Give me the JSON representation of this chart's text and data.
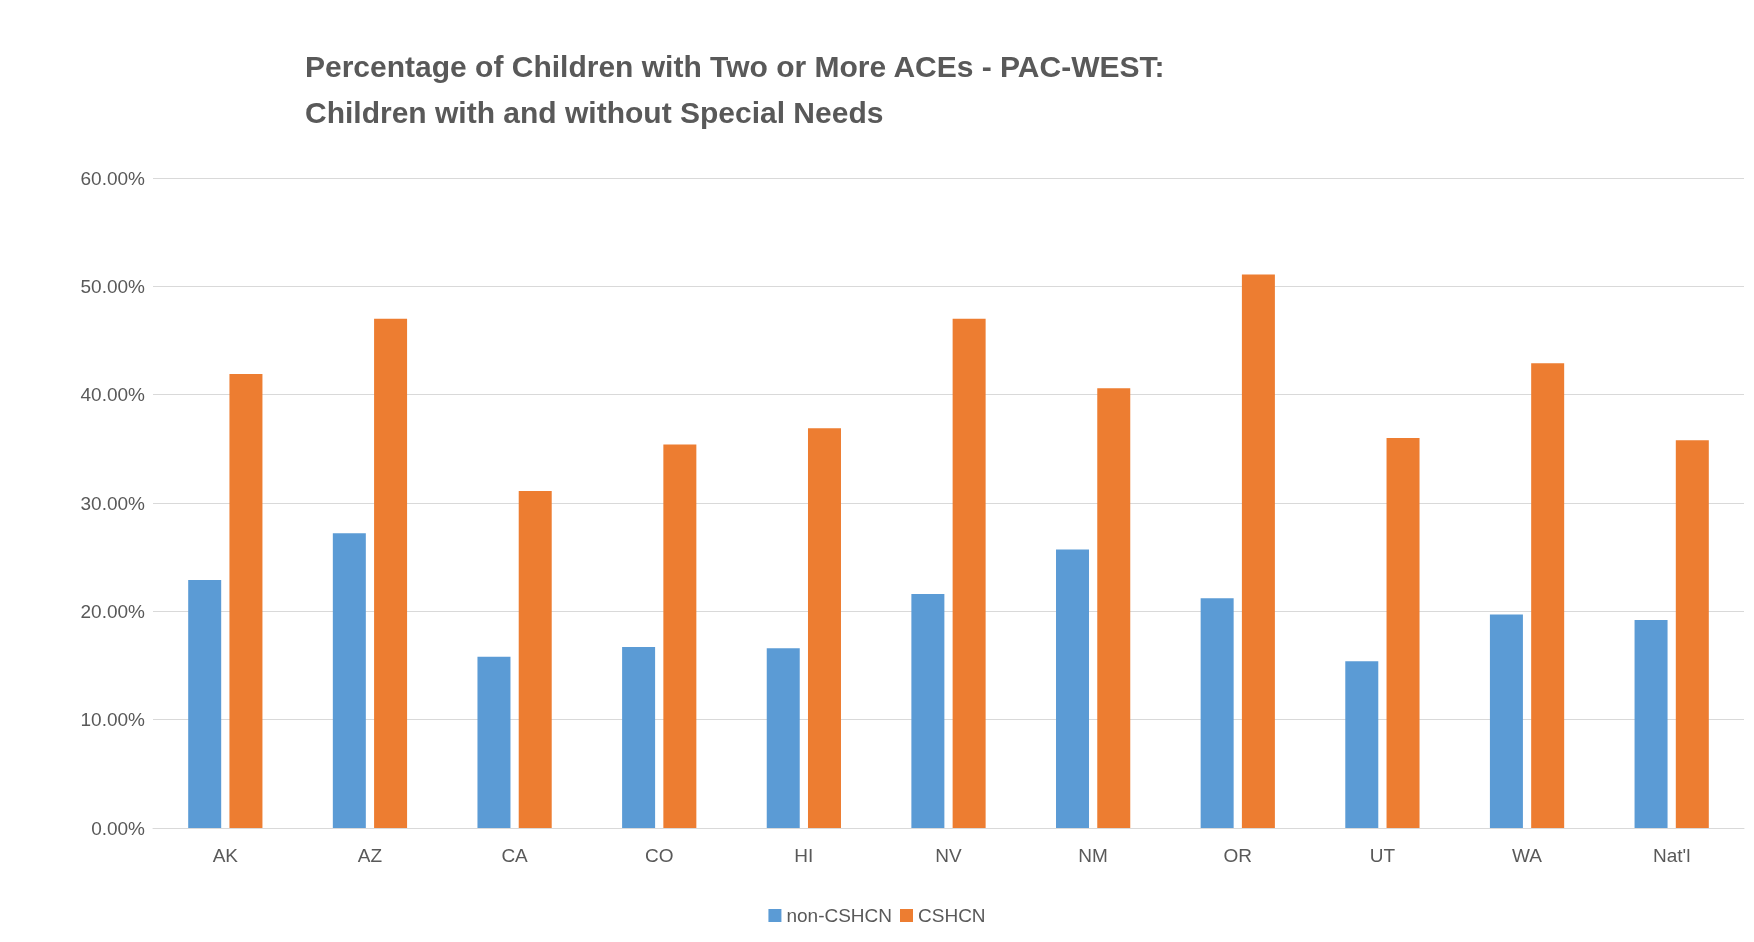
{
  "chart_data": {
    "type": "bar",
    "title": "Percentage of Children with Two or More ACEs - PAC-WEST:\nChildren with and without Special Needs",
    "categories": [
      "AK",
      "AZ",
      "CA",
      "CO",
      "HI",
      "NV",
      "NM",
      "OR",
      "UT",
      "WA",
      "Nat'l"
    ],
    "series": [
      {
        "name": "non-CSHCN",
        "color": "#5b9bd5",
        "values": [
          22.9,
          27.2,
          15.8,
          16.7,
          16.6,
          21.6,
          25.7,
          21.2,
          15.4,
          19.7,
          19.2
        ]
      },
      {
        "name": "CSHCN",
        "color": "#ed7d31",
        "values": [
          41.9,
          47.0,
          31.1,
          35.4,
          36.9,
          47.0,
          40.6,
          51.1,
          36.0,
          42.9,
          35.8
        ]
      }
    ],
    "ylim": [
      0,
      60
    ],
    "yticks": [
      {
        "value": 0,
        "label": "0.00%"
      },
      {
        "value": 10,
        "label": "10.00%"
      },
      {
        "value": 20,
        "label": "20.00%"
      },
      {
        "value": 30,
        "label": "30.00%"
      },
      {
        "value": 40,
        "label": "40.00%"
      },
      {
        "value": 50,
        "label": "50.00%"
      },
      {
        "value": 60,
        "label": "60.00%"
      }
    ],
    "grid": "y",
    "legend": "bottom"
  }
}
